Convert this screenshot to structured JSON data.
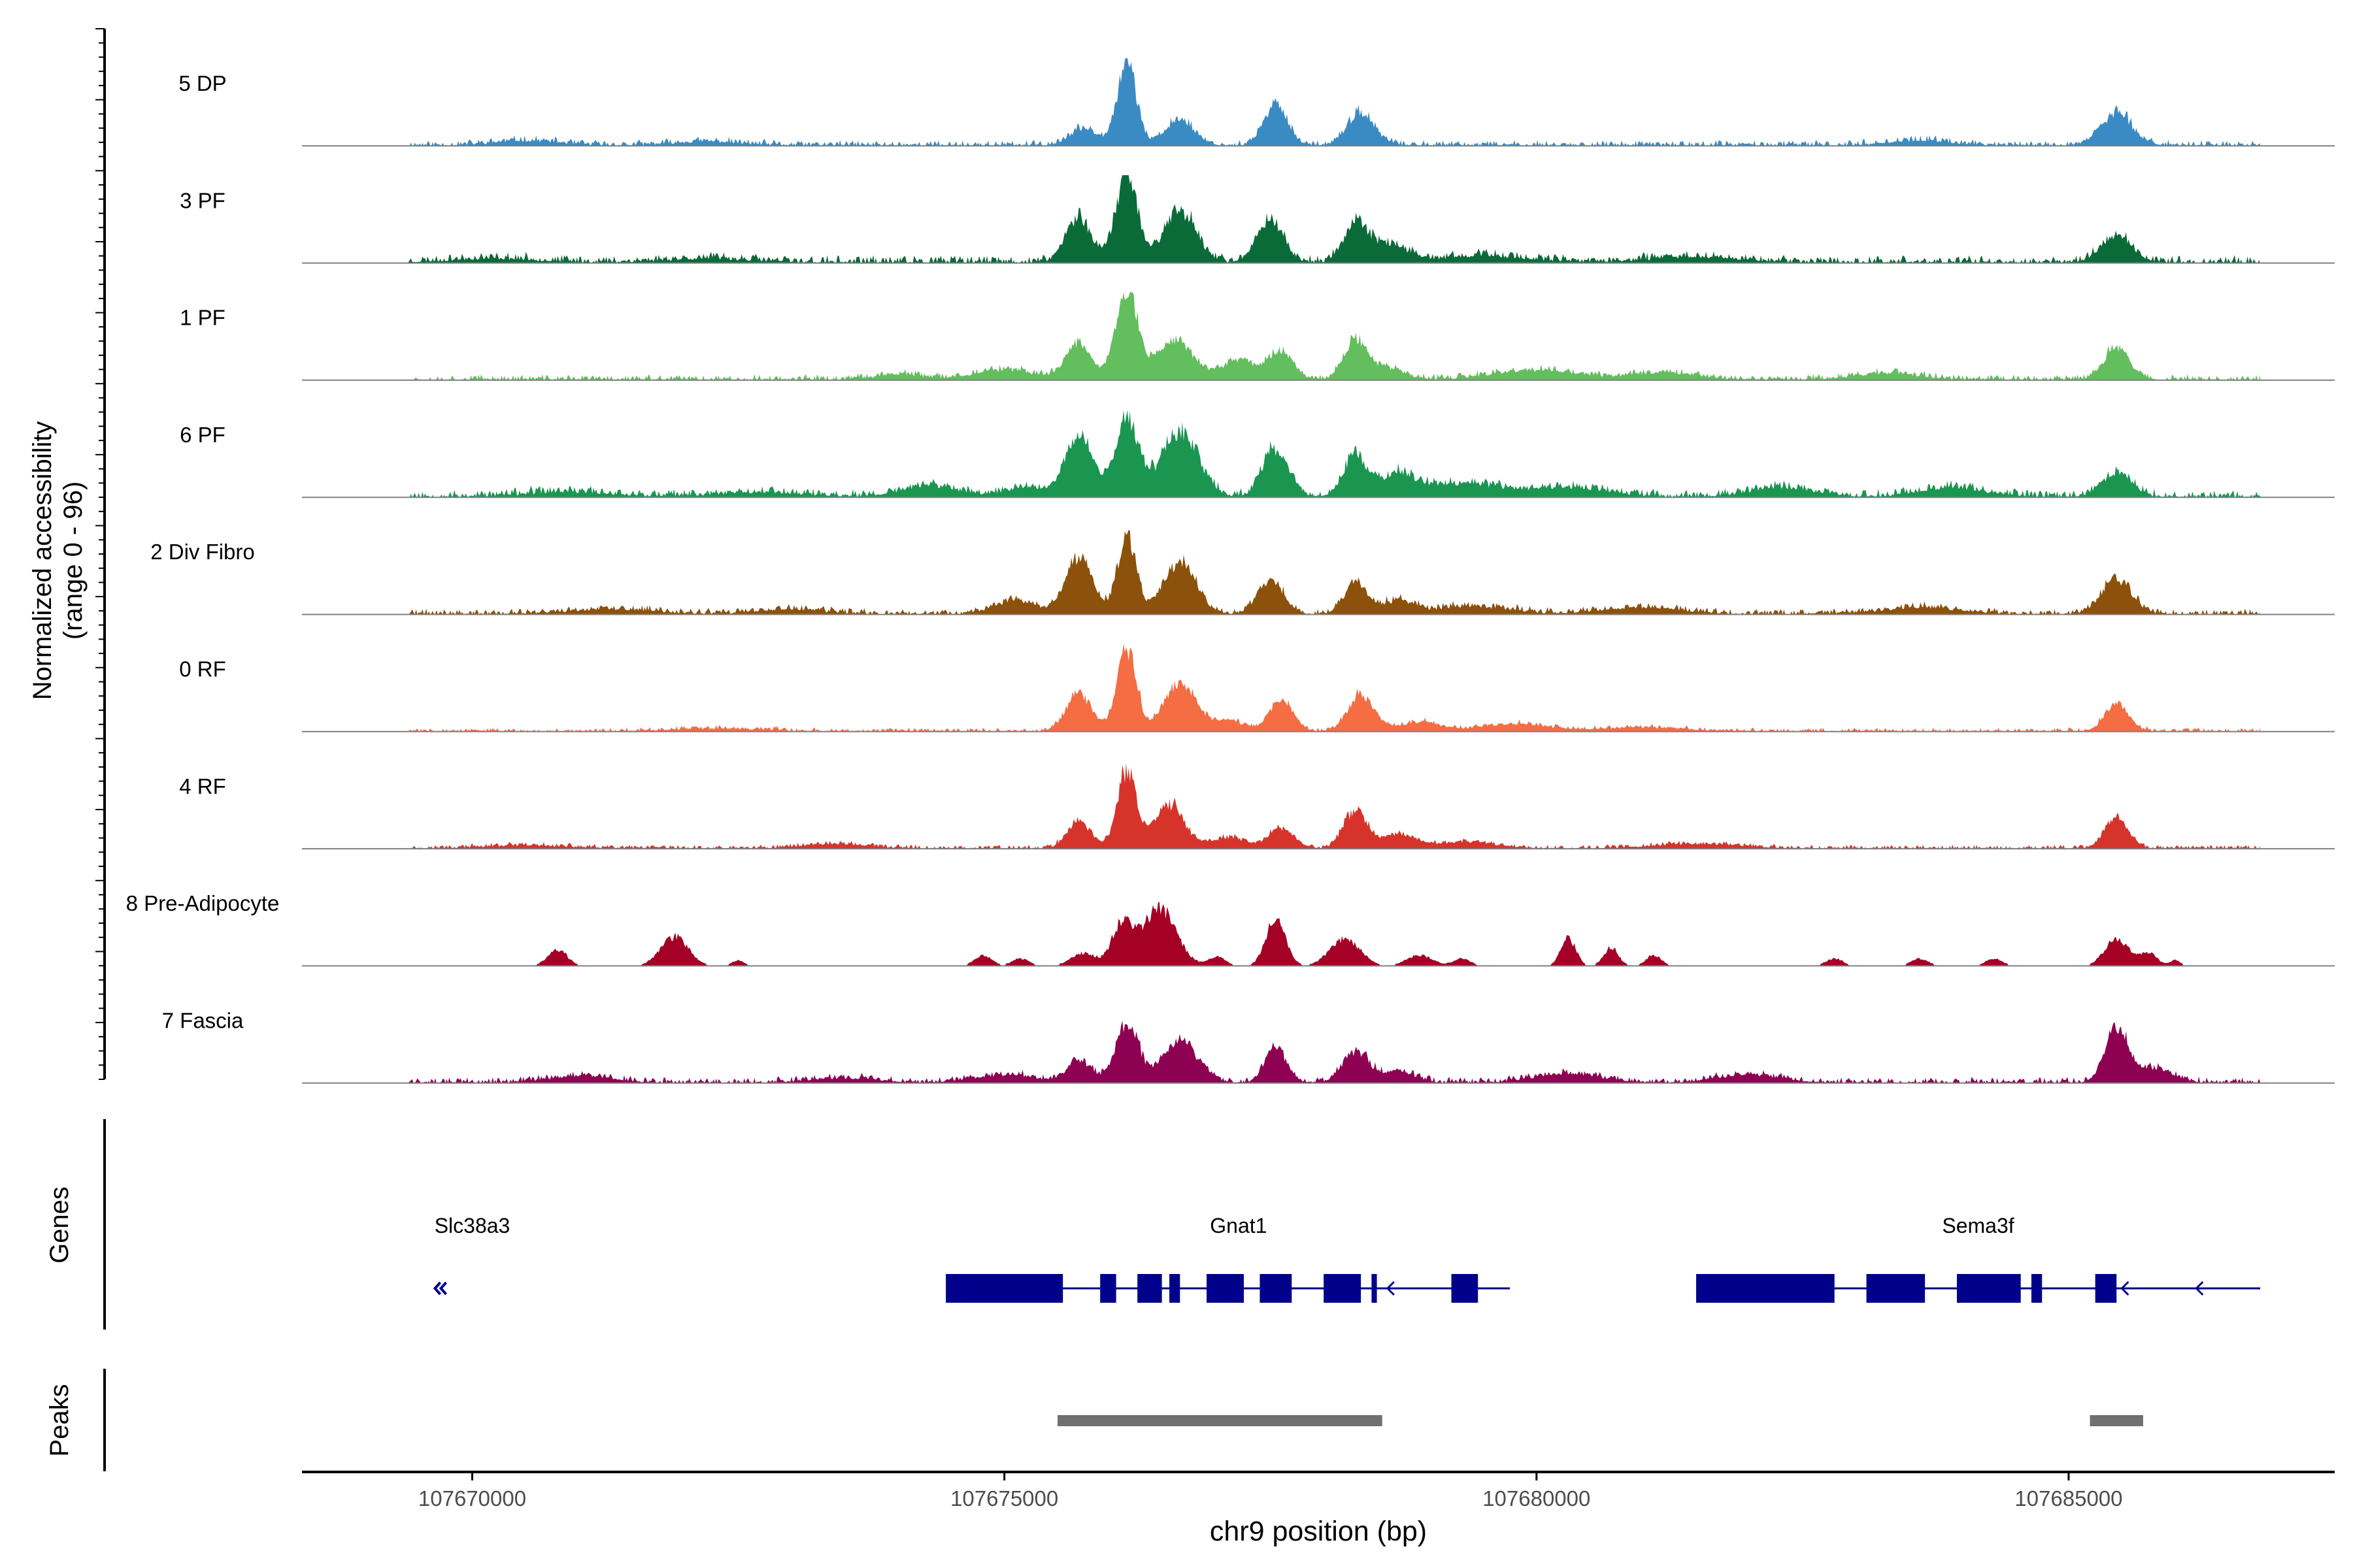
{
  "chart_data": {
    "type": "area",
    "title": "",
    "chromosome": "chr9",
    "xlabel": "chr9 position (bp)",
    "ylabel_line1": "Normalized accessibility",
    "ylabel_line2": "(range 0 - 96)",
    "xlim": [
      107668400,
      107687500
    ],
    "ylim": [
      0,
      96
    ],
    "xticks": [
      107670000,
      107675000,
      107680000,
      107685000
    ],
    "xtick_labels": [
      "107670000",
      "107675000",
      "107680000",
      "107685000"
    ],
    "coverage_range": [
      107669400,
      107686800
    ],
    "tracks": [
      {
        "name": "5 DP",
        "color": "#3A8BC4",
        "background": 3,
        "noise_seed": 11,
        "peaks": [
          [
            107676150,
            90,
            90
          ],
          [
            107675750,
            18,
            130
          ],
          [
            107676650,
            28,
            130
          ],
          [
            107677550,
            44,
            110
          ],
          [
            107678350,
            34,
            130
          ],
          [
            107685450,
            34,
            150
          ],
          [
            107672200,
            4,
            300
          ],
          [
            107670500,
            5,
            300
          ],
          [
            107683600,
            5,
            300
          ]
        ]
      },
      {
        "name": "3 PF",
        "color": "#0A6B38",
        "background": 4,
        "noise_seed": 23,
        "peaks": [
          [
            107676150,
            96,
            100
          ],
          [
            107675700,
            48,
            120
          ],
          [
            107676650,
            56,
            150
          ],
          [
            107677500,
            48,
            120
          ],
          [
            107678300,
            42,
            110
          ],
          [
            107678600,
            20,
            160
          ],
          [
            107685450,
            30,
            140
          ],
          [
            107679500,
            7,
            400
          ],
          [
            107681500,
            6,
            400
          ],
          [
            107672200,
            4,
            400
          ],
          [
            107670200,
            4,
            400
          ]
        ]
      },
      {
        "name": "1 PF",
        "color": "#63BE5E",
        "background": 3,
        "noise_seed": 37,
        "peaks": [
          [
            107676150,
            96,
            100
          ],
          [
            107675700,
            40,
            120
          ],
          [
            107676600,
            44,
            170
          ],
          [
            107677200,
            22,
            150
          ],
          [
            107677600,
            30,
            120
          ],
          [
            107678300,
            44,
            110
          ],
          [
            107678600,
            12,
            150
          ],
          [
            107685450,
            34,
            120
          ],
          [
            107675000,
            10,
            300
          ],
          [
            107680000,
            10,
            400
          ],
          [
            107681200,
            8,
            300
          ],
          [
            107683300,
            7,
            300
          ],
          [
            107674000,
            6,
            200
          ]
        ]
      },
      {
        "name": "6 PF",
        "color": "#1A9651",
        "background": 4,
        "noise_seed": 53,
        "peaks": [
          [
            107676150,
            82,
            110
          ],
          [
            107675700,
            66,
            130
          ],
          [
            107676650,
            72,
            170
          ],
          [
            107677550,
            52,
            120
          ],
          [
            107678300,
            44,
            110
          ],
          [
            107678700,
            22,
            170
          ],
          [
            107685450,
            26,
            140
          ],
          [
            107679300,
            14,
            350
          ],
          [
            107680300,
            10,
            350
          ],
          [
            107682300,
            10,
            300
          ],
          [
            107683900,
            10,
            300
          ],
          [
            107674300,
            12,
            250
          ],
          [
            107675200,
            10,
            200
          ],
          [
            107670900,
            5,
            400
          ],
          [
            107672700,
            5,
            400
          ]
        ]
      },
      {
        "name": "2 Div Fibro",
        "color": "#8C510A",
        "background": 3,
        "noise_seed": 71,
        "peaks": [
          [
            107676150,
            84,
            90
          ],
          [
            107675700,
            62,
            120
          ],
          [
            107676650,
            58,
            150
          ],
          [
            107677500,
            38,
            120
          ],
          [
            107678300,
            34,
            110
          ],
          [
            107678700,
            14,
            140
          ],
          [
            107685450,
            38,
            140
          ],
          [
            107675100,
            14,
            200
          ],
          [
            107679400,
            8,
            350
          ],
          [
            107681000,
            7,
            350
          ],
          [
            107683600,
            7,
            350
          ],
          [
            107671300,
            5,
            400
          ],
          [
            107673000,
            5,
            300
          ]
        ]
      },
      {
        "name": "0 RF",
        "color": "#F46D43",
        "background": 2,
        "noise_seed": 83,
        "peaks": [
          [
            107676150,
            90,
            90
          ],
          [
            107675700,
            40,
            120
          ],
          [
            107676650,
            52,
            150
          ],
          [
            107677100,
            12,
            150
          ],
          [
            107677600,
            34,
            110
          ],
          [
            107678350,
            40,
            120
          ],
          [
            107678900,
            10,
            200
          ],
          [
            107685450,
            30,
            110
          ],
          [
            107679800,
            8,
            300
          ],
          [
            107681000,
            4,
            400
          ],
          [
            107672300,
            3,
            400
          ]
        ]
      },
      {
        "name": "4 RF",
        "color": "#D6342B",
        "background": 2,
        "noise_seed": 97,
        "peaks": [
          [
            107676150,
            84,
            90
          ],
          [
            107675700,
            30,
            110
          ],
          [
            107676550,
            48,
            140
          ],
          [
            107677100,
            12,
            150
          ],
          [
            107677600,
            22,
            120
          ],
          [
            107678300,
            42,
            110
          ],
          [
            107678700,
            14,
            140
          ],
          [
            107685450,
            34,
            110
          ],
          [
            107679300,
            7,
            300
          ],
          [
            107681500,
            5,
            400
          ],
          [
            107673400,
            5,
            300
          ],
          [
            107670500,
            3,
            400
          ]
        ]
      },
      {
        "name": "8 Pre-Adipocyte",
        "color": "#A50026",
        "background": 0,
        "noise_seed": 109,
        "peaks": [
          [
            107670800,
            18,
            90
          ],
          [
            107671900,
            32,
            130
          ],
          [
            107674800,
            12,
            80
          ],
          [
            107675150,
            8,
            80
          ],
          [
            107675750,
            14,
            120
          ],
          [
            107676100,
            44,
            90
          ],
          [
            107676450,
            64,
            160
          ],
          [
            107677000,
            10,
            80
          ],
          [
            107677550,
            54,
            90
          ],
          [
            107678200,
            30,
            140
          ],
          [
            107678900,
            12,
            120
          ],
          [
            107679300,
            8,
            80
          ],
          [
            107680300,
            30,
            70
          ],
          [
            107680700,
            20,
            70
          ],
          [
            107681100,
            12,
            70
          ],
          [
            107682800,
            8,
            80
          ],
          [
            107685450,
            30,
            110
          ],
          [
            107685750,
            14,
            80
          ],
          [
            107686000,
            6,
            50
          ],
          [
            107683600,
            8,
            80
          ],
          [
            107684300,
            8,
            80
          ],
          [
            107672500,
            6,
            60
          ]
        ]
      },
      {
        "name": "7 Fascia",
        "color": "#8E0152",
        "background": 3,
        "noise_seed": 131,
        "peaks": [
          [
            107676150,
            62,
            110
          ],
          [
            107675700,
            24,
            110
          ],
          [
            107676650,
            46,
            160
          ],
          [
            107677550,
            38,
            100
          ],
          [
            107678300,
            34,
            120
          ],
          [
            107678700,
            12,
            150
          ],
          [
            107685450,
            56,
            110
          ],
          [
            107685800,
            16,
            160
          ],
          [
            107680300,
            10,
            300
          ],
          [
            107682000,
            8,
            300
          ],
          [
            107671000,
            7,
            300
          ],
          [
            107673500,
            5,
            300
          ],
          [
            107675000,
            8,
            300
          ]
        ]
      }
    ],
    "genes": {
      "label": "Genes",
      "color": "#00008B",
      "items": [
        {
          "name": "Slc38a3",
          "label_pos": 107670000,
          "strand": "-",
          "line": [
            107669500,
            107669500
          ],
          "exons": [],
          "marker": "double-chevron",
          "marker_pos": 107669650
        },
        {
          "name": "Gnat1",
          "label_pos": 107677200,
          "strand": "-",
          "line": [
            107674450,
            107679750
          ],
          "exons": [
            [
              107674450,
              107675550
            ],
            [
              107675900,
              107676050
            ],
            [
              107676250,
              107676480
            ],
            [
              107676550,
              107676650
            ],
            [
              107676900,
              107677250
            ],
            [
              107677400,
              107677700
            ],
            [
              107678000,
              107678350
            ],
            [
              107678450,
              107678500
            ],
            [
              107679200,
              107679450
            ]
          ],
          "arrows": [
            107676400,
            107678600
          ]
        },
        {
          "name": "Sema3f",
          "label_pos": 107684150,
          "strand": "-",
          "line": [
            107681500,
            107686800
          ],
          "exons": [
            [
              107681500,
              107682800
            ],
            [
              107683100,
              107683650
            ],
            [
              107683950,
              107684550
            ],
            [
              107684650,
              107684750
            ],
            [
              107685250,
              107685450
            ]
          ],
          "arrows": [
            107685500,
            107686200
          ]
        }
      ]
    },
    "peaks_track": {
      "label": "Peaks",
      "color": "#707070",
      "regions": [
        [
          107675500,
          107678550
        ],
        [
          107685200,
          107685700
        ]
      ]
    }
  }
}
